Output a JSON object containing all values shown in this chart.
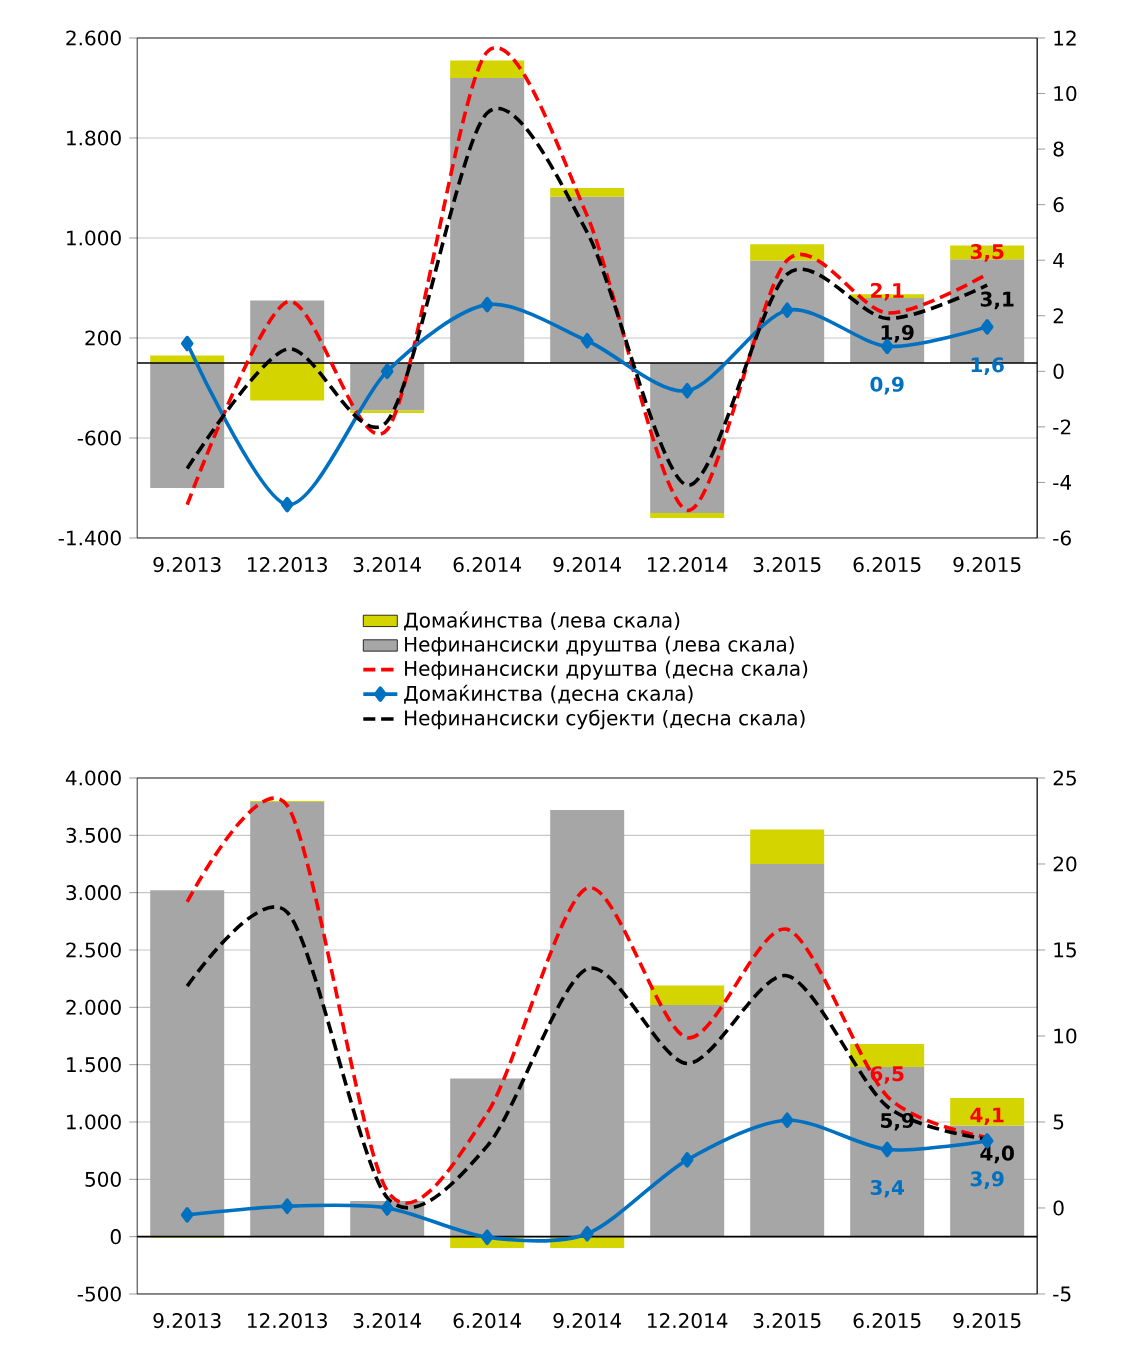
{
  "chart_data": [
    {
      "type": "bar",
      "stacked": true,
      "categories": [
        "9.2013",
        "12.2013",
        "3.2014",
        "6.2014",
        "9.2014",
        "12.2014",
        "3.2015",
        "6.2015",
        "9.2015"
      ],
      "ref_lines": [
        {
          "axis": "y",
          "value": 0,
          "color": "#000000"
        }
      ],
      "ylim": [
        -1400,
        2600
      ],
      "yticks": [
        {
          "value": -1400,
          "label": "-1.400"
        },
        -600,
        200,
        {
          "value": 1000,
          "label": "1.000"
        },
        {
          "value": 1800,
          "label": "1.800"
        },
        {
          "value": 2600,
          "label": "2.600"
        }
      ],
      "y2lim": [
        -6,
        12
      ],
      "y2ticks": [
        -6,
        -4,
        -2,
        0,
        2,
        4,
        6,
        8,
        10,
        12
      ],
      "grid": "y",
      "legend": "bottom",
      "series": [
        {
          "name": "Нефинансиски друштва (лева скала)",
          "axis": "y",
          "color": "#a6a6a6",
          "values": [
            -1000,
            500,
            -380,
            2280,
            1330,
            -1200,
            820,
            520,
            830
          ]
        },
        {
          "name": "Домаќинства (лева скала)",
          "axis": "y",
          "color": "#d4d400",
          "values": [
            60,
            -300,
            -20,
            140,
            70,
            -40,
            130,
            30,
            110
          ]
        },
        {
          "name": "Нефинансиски друштва (десна скала)",
          "type": "line",
          "axis": "y2",
          "color": "#ff0000",
          "line_style": "dashed",
          "marker": "none",
          "values": [
            -4.8,
            2.5,
            -2.1,
            11.5,
            5.6,
            -5.0,
            4.0,
            2.1,
            3.5
          ],
          "value_labels": [
            null,
            null,
            null,
            null,
            null,
            null,
            null,
            "2,1",
            "3,5"
          ]
        },
        {
          "name": "Домаќинства (десна скала)",
          "type": "line",
          "axis": "y2",
          "color": "#0070c0",
          "line_style": "solid",
          "marker": "diamond",
          "values": [
            1.0,
            -4.8,
            0.0,
            2.4,
            1.1,
            -0.7,
            2.2,
            0.9,
            1.6
          ],
          "value_labels": [
            null,
            null,
            null,
            null,
            null,
            null,
            null,
            "0,9",
            "1,6"
          ]
        },
        {
          "name": "Нефинансиски субјекти (десна скала)",
          "type": "line",
          "axis": "y2",
          "color": "#000000",
          "line_style": "dashed",
          "marker": "none",
          "values": [
            -3.5,
            0.8,
            -1.8,
            9.3,
            5.0,
            -4.1,
            3.5,
            1.9,
            3.1
          ],
          "value_labels": [
            null,
            null,
            null,
            null,
            null,
            null,
            null,
            "1,9",
            "3,1"
          ]
        }
      ]
    },
    {
      "type": "bar",
      "stacked": true,
      "categories": [
        "9.2013",
        "12.2013",
        "3.2014",
        "6.2014",
        "9.2014",
        "12.2014",
        "3.2015",
        "6.2015",
        "9.2015"
      ],
      "ref_lines": [
        {
          "axis": "y",
          "value": 0,
          "color": "#000000"
        }
      ],
      "ylim": [
        -500,
        4000
      ],
      "yticks": [
        -500,
        0,
        500,
        {
          "value": 1000,
          "label": "1.000"
        },
        {
          "value": 1500,
          "label": "1.500"
        },
        {
          "value": 2000,
          "label": "2.000"
        },
        {
          "value": 2500,
          "label": "2.500"
        },
        {
          "value": 3000,
          "label": "3.000"
        },
        {
          "value": 3500,
          "label": "3.500"
        },
        {
          "value": 4000,
          "label": "4.000"
        }
      ],
      "y2lim": [
        -5,
        25
      ],
      "y2ticks": [
        -5,
        0,
        5,
        10,
        15,
        20,
        25
      ],
      "grid": "y",
      "series": [
        {
          "axis": "y",
          "color": "#a6a6a6",
          "values": [
            3020,
            3790,
            310,
            1380,
            3720,
            2020,
            3250,
            1480,
            970
          ]
        },
        {
          "axis": "y",
          "color": "#d4d400",
          "values": [
            -10,
            10,
            0,
            -100,
            -100,
            170,
            300,
            200,
            240
          ]
        },
        {
          "type": "line",
          "axis": "y2",
          "color": "#ff0000",
          "line_style": "dashed",
          "marker": "none",
          "values": [
            17.8,
            23.4,
            1.0,
            5.5,
            18.6,
            9.9,
            16.2,
            6.5,
            4.1
          ],
          "value_labels": [
            null,
            null,
            null,
            null,
            null,
            null,
            null,
            "6,5",
            "4,1"
          ]
        },
        {
          "type": "line",
          "axis": "y2",
          "color": "#0070c0",
          "line_style": "solid",
          "marker": "diamond",
          "values": [
            -0.4,
            0.1,
            0.0,
            -1.7,
            -1.5,
            2.8,
            5.1,
            3.4,
            3.9
          ],
          "value_labels": [
            null,
            null,
            null,
            null,
            null,
            null,
            null,
            "3,4",
            "3,9"
          ]
        },
        {
          "type": "line",
          "axis": "y2",
          "color": "#000000",
          "line_style": "dashed",
          "marker": "none",
          "values": [
            12.9,
            17.2,
            0.6,
            3.6,
            13.9,
            8.4,
            13.5,
            5.9,
            4.0
          ],
          "value_labels": [
            null,
            null,
            null,
            null,
            null,
            null,
            null,
            "5,9",
            "4,0"
          ]
        }
      ]
    }
  ]
}
